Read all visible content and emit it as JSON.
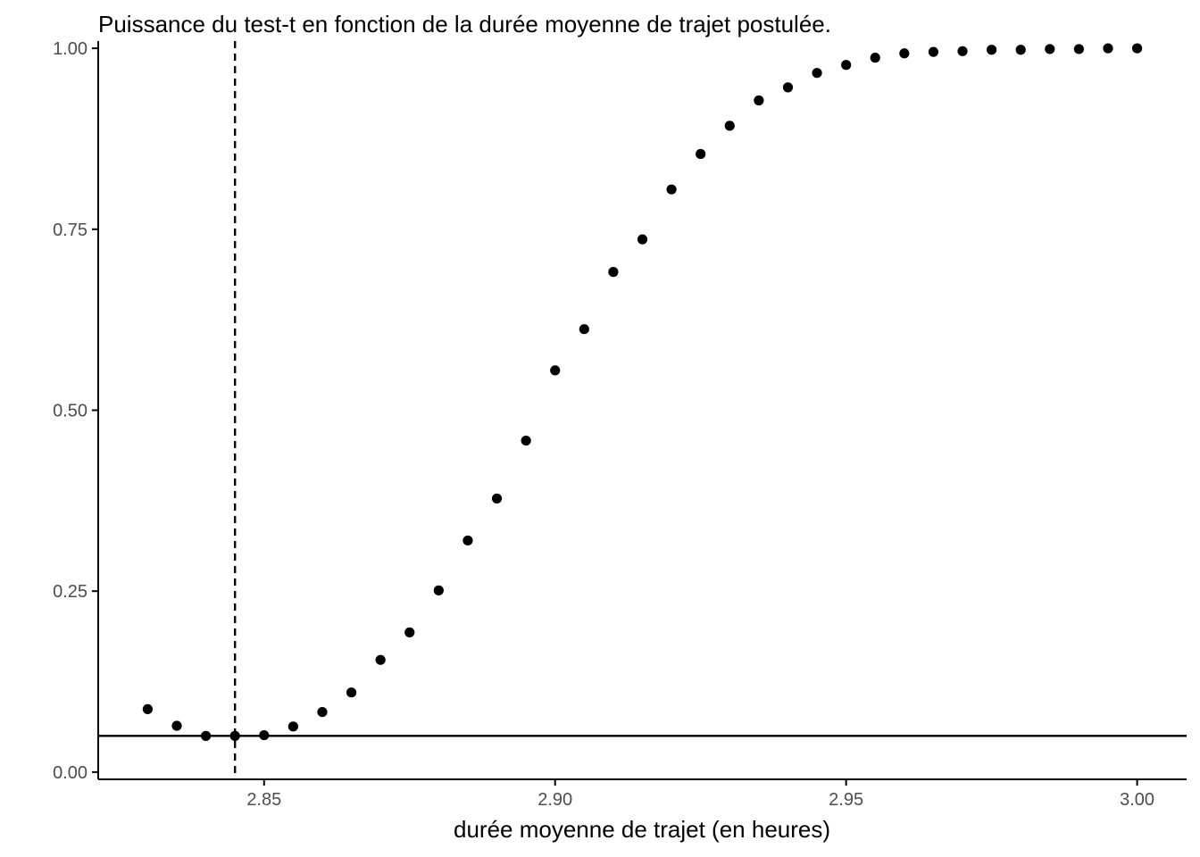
{
  "chart_data": {
    "type": "scatter",
    "title": "Puissance du test-t en fonction de la durée moyenne de trajet postulée.",
    "xlabel": "durée moyenne de trajet (en heures)",
    "ylabel": "",
    "xlim": [
      2.8215,
      3.0085
    ],
    "ylim": [
      -0.01,
      1.01
    ],
    "x_ticks": [
      2.85,
      2.9,
      2.95,
      3.0
    ],
    "x_tick_labels": [
      "2.85",
      "2.90",
      "2.95",
      "3.00"
    ],
    "y_ticks": [
      0,
      0.25,
      0.5,
      0.75,
      1
    ],
    "y_tick_labels": [
      "0.00",
      "0.25",
      "0.50",
      "0.75",
      "1.00"
    ],
    "grid": false,
    "legend": "none",
    "point_color": "#000000",
    "reference_lines": {
      "horizontal": {
        "y": 0.05,
        "style": "solid"
      },
      "vertical": {
        "x": 2.845,
        "style": "dashed"
      }
    },
    "points": {
      "x": [
        2.83,
        2.835,
        2.84,
        2.845,
        2.85,
        2.855,
        2.86,
        2.865,
        2.87,
        2.875,
        2.88,
        2.885,
        2.89,
        2.895,
        2.9,
        2.905,
        2.91,
        2.915,
        2.92,
        2.925,
        2.93,
        2.935,
        2.94,
        2.945,
        2.95,
        2.955,
        2.96,
        2.965,
        2.97,
        2.975,
        2.98,
        2.985,
        2.99,
        2.995,
        3.0
      ],
      "y": [
        0.087,
        0.064,
        0.05,
        0.05,
        0.051,
        0.063,
        0.083,
        0.11,
        0.155,
        0.193,
        0.251,
        0.32,
        0.378,
        0.458,
        0.555,
        0.612,
        0.691,
        0.736,
        0.805,
        0.854,
        0.893,
        0.928,
        0.946,
        0.966,
        0.977,
        0.987,
        0.993,
        0.995,
        0.996,
        0.998,
        0.998,
        0.999,
        0.999,
        1.0,
        1.0
      ]
    }
  }
}
